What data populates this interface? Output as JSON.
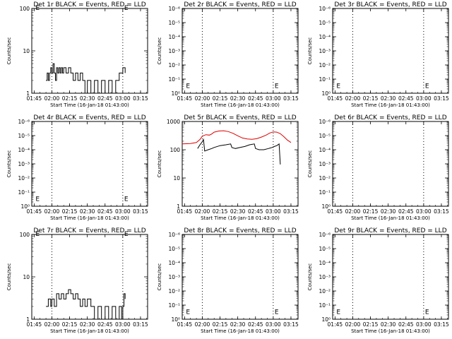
{
  "figure": {
    "background": "#ffffff",
    "event_color": "#000000",
    "lld_color": "#dd0000"
  },
  "chart_data": [
    {
      "type": "line",
      "title": "Det 1r BLACK = Events, RED = LLD",
      "xlabel": "Start Time (16-Jan-18 01:43:00)",
      "ylabel": "Counts/sec",
      "xlim": [
        "01:43",
        "03:21"
      ],
      "y_scale": "log",
      "ylim": [
        1,
        100
      ],
      "xticks": [
        "01:45",
        "02:00",
        "02:15",
        "02:30",
        "02:45",
        "03:00",
        "03:15"
      ],
      "yticks": [
        "1",
        "10",
        "100"
      ],
      "vlines": [
        "02:00",
        "03:00"
      ],
      "markers": [
        {
          "text": "E",
          "x": "01:45",
          "y": 100
        },
        {
          "text": "E",
          "x": "03:00",
          "y": 100
        }
      ],
      "series": [
        {
          "values": [
            [
              "01:55",
              2
            ],
            [
              "01:56",
              3
            ],
            [
              "01:57",
              2
            ],
            [
              "01:58",
              3
            ],
            [
              "01:59",
              4
            ],
            [
              "02:00",
              3
            ],
            [
              "02:01",
              5
            ],
            [
              "02:02",
              3
            ],
            [
              "02:03",
              2
            ],
            [
              "02:04",
              4
            ],
            [
              "02:05",
              3
            ],
            [
              "02:06",
              4
            ],
            [
              "02:07",
              3
            ],
            [
              "02:08",
              4
            ],
            [
              "02:09",
              3
            ],
            [
              "02:10",
              4
            ],
            [
              "02:12",
              3
            ],
            [
              "02:14",
              4
            ],
            [
              "02:16",
              3
            ],
            [
              "02:18",
              2
            ],
            [
              "02:20",
              3
            ],
            [
              "02:22",
              2
            ],
            [
              "02:24",
              3
            ],
            [
              "02:26",
              2
            ],
            [
              "02:28",
              1
            ],
            [
              "02:30",
              2
            ],
            [
              "02:33",
              1
            ],
            [
              "02:36",
              2
            ],
            [
              "02:39",
              1
            ],
            [
              "02:42",
              2
            ],
            [
              "02:45",
              1
            ],
            [
              "02:48",
              2
            ],
            [
              "02:51",
              1
            ],
            [
              "02:54",
              2
            ],
            [
              "02:57",
              3
            ],
            [
              "03:00",
              4
            ],
            [
              "03:02",
              3
            ]
          ]
        }
      ]
    },
    {
      "type": "line",
      "title": "Det 2r BLACK = Events, RED = LLD",
      "xlabel": "Start Time (16-Jan-18 01:43:00)",
      "ylabel": "Counts/sec",
      "xlim": [
        "01:43",
        "03:21"
      ],
      "y_scale": "log",
      "ylim": [
        1,
        1000000
      ],
      "xticks": [
        "01:45",
        "02:00",
        "02:15",
        "02:30",
        "02:45",
        "03:00",
        "03:15"
      ],
      "yticks": [
        "10⁰",
        "10⁻¹",
        "10⁻²",
        "10⁻³",
        "10⁻⁴",
        "10⁻⁵",
        "10⁻⁶"
      ],
      "vlines": [
        "02:00",
        "03:00"
      ],
      "markers": [
        {
          "text": "E",
          "x": "01:45",
          "y": 3
        },
        {
          "text": "E",
          "x": "03:00",
          "y": 3
        }
      ],
      "series": []
    },
    {
      "type": "line",
      "title": "Det 3r BLACK = Events, RED = LLD",
      "xlabel": "Start Time (16-Jan-18 01:43:00)",
      "ylabel": "Counts/sec",
      "xlim": [
        "01:43",
        "03:21"
      ],
      "y_scale": "log",
      "ylim": [
        1,
        1000000
      ],
      "xticks": [
        "01:45",
        "02:00",
        "02:15",
        "02:30",
        "02:45",
        "03:00",
        "03:15"
      ],
      "yticks": [
        "10⁰",
        "10⁻¹",
        "10⁻²",
        "10⁻³",
        "10⁻⁴",
        "10⁻⁵",
        "10⁻⁶"
      ],
      "vlines": [
        "02:00",
        "03:00"
      ],
      "markers": [
        {
          "text": "E",
          "x": "01:45",
          "y": 3
        },
        {
          "text": "E",
          "x": "03:00",
          "y": 3
        }
      ],
      "series": []
    },
    {
      "type": "line",
      "title": "Det 4r BLACK = Events, RED = LLD",
      "xlabel": "Start Time (16-Jan-18 01:43:00)",
      "ylabel": "Counts/sec",
      "xlim": [
        "01:43",
        "03:21"
      ],
      "y_scale": "log",
      "ylim": [
        1,
        1000000
      ],
      "xticks": [
        "01:45",
        "02:00",
        "02:15",
        "02:30",
        "02:45",
        "03:00",
        "03:15"
      ],
      "yticks": [
        "10⁰",
        "10⁻¹",
        "10⁻²",
        "10⁻³",
        "10⁻⁴",
        "10⁻⁵",
        "10⁻⁶"
      ],
      "vlines": [
        "02:00",
        "03:00"
      ],
      "markers": [
        {
          "text": "E",
          "x": "01:45",
          "y": 3
        },
        {
          "text": "E",
          "x": "03:00",
          "y": 3
        }
      ],
      "series": []
    },
    {
      "type": "line",
      "title": "Det 5r BLACK = Events, RED = LLD",
      "xlabel": "Start Time (16-Jan-18 01:43:00)",
      "ylabel": "Counts/sec",
      "xlim": [
        "01:43",
        "03:21"
      ],
      "y_scale": "log",
      "ylim": [
        1,
        1000
      ],
      "xticks": [
        "01:45",
        "02:00",
        "02:15",
        "02:30",
        "02:45",
        "03:00",
        "03:15"
      ],
      "yticks": [
        "1",
        "10",
        "100",
        "1000"
      ],
      "vlines": [
        "02:00",
        "03:00"
      ],
      "markers": [],
      "series": [
        {
          "color": "#dd0000",
          "values": [
            [
              "01:43",
              160
            ],
            [
              "01:50",
              165
            ],
            [
              "01:55",
              180
            ],
            [
              "01:58",
              230
            ],
            [
              "02:00",
              300
            ],
            [
              "02:03",
              340
            ],
            [
              "02:06",
              330
            ],
            [
              "02:08",
              360
            ],
            [
              "02:10",
              420
            ],
            [
              "02:14",
              460
            ],
            [
              "02:18",
              470
            ],
            [
              "02:22",
              440
            ],
            [
              "02:26",
              380
            ],
            [
              "02:30",
              310
            ],
            [
              "02:34",
              260
            ],
            [
              "02:38",
              240
            ],
            [
              "02:42",
              235
            ],
            [
              "02:46",
              245
            ],
            [
              "02:50",
              280
            ],
            [
              "02:54",
              330
            ],
            [
              "02:57",
              390
            ],
            [
              "03:00",
              430
            ],
            [
              "03:03",
              420
            ],
            [
              "03:06",
              370
            ],
            [
              "03:09",
              290
            ],
            [
              "03:12",
              220
            ],
            [
              "03:15",
              180
            ]
          ]
        },
        {
          "color": "#000000",
          "values": [
            [
              "01:56",
              110
            ],
            [
              "01:58",
              150
            ],
            [
              "02:00",
              190
            ],
            [
              "02:01",
              230
            ],
            [
              "02:02",
              90
            ],
            [
              "02:05",
              100
            ],
            [
              "02:08",
              110
            ],
            [
              "02:10",
              120
            ],
            [
              "02:15",
              140
            ],
            [
              "02:20",
              150
            ],
            [
              "02:24",
              160
            ],
            [
              "02:25",
              120
            ],
            [
              "02:28",
              110
            ],
            [
              "02:32",
              120
            ],
            [
              "02:36",
              130
            ],
            [
              "02:40",
              150
            ],
            [
              "02:44",
              160
            ],
            [
              "02:45",
              110
            ],
            [
              "02:48",
              100
            ],
            [
              "02:52",
              100
            ],
            [
              "02:56",
              110
            ],
            [
              "02:59",
              120
            ],
            [
              "03:01",
              130
            ],
            [
              "03:03",
              140
            ],
            [
              "03:05",
              160
            ],
            [
              "03:06",
              30
            ]
          ]
        }
      ]
    },
    {
      "type": "line",
      "title": "Det 6r BLACK = Events, RED = LLD",
      "xlabel": "Start Time (16-Jan-18 01:43:00)",
      "ylabel": "Counts/sec",
      "xlim": [
        "01:43",
        "03:21"
      ],
      "y_scale": "log",
      "ylim": [
        1,
        1000000
      ],
      "xticks": [
        "01:45",
        "02:00",
        "02:15",
        "02:30",
        "02:45",
        "03:00",
        "03:15"
      ],
      "yticks": [
        "10⁰",
        "10⁻¹",
        "10⁻²",
        "10⁻³",
        "10⁻⁴",
        "10⁻⁵",
        "10⁻⁶"
      ],
      "vlines": [
        "02:00",
        "03:00"
      ],
      "markers": [],
      "series": []
    },
    {
      "type": "line",
      "title": "Det 7r BLACK = Events, RED = LLD",
      "xlabel": "Start Time (16-Jan-18 01:43:00)",
      "ylabel": "Counts/sec",
      "xlim": [
        "01:43",
        "03:21"
      ],
      "y_scale": "log",
      "ylim": [
        1,
        100
      ],
      "xticks": [
        "01:45",
        "02:00",
        "02:15",
        "02:30",
        "02:45",
        "03:00",
        "03:15"
      ],
      "yticks": [
        "1",
        "10",
        "100"
      ],
      "vlines": [
        "02:00",
        "03:00"
      ],
      "markers": [
        {
          "text": "E",
          "x": "01:45",
          "y": 100
        },
        {
          "text": "E",
          "x": "03:00",
          "y": 100
        }
      ],
      "series": [
        {
          "values": [
            [
              "01:55",
              2
            ],
            [
              "01:57",
              3
            ],
            [
              "01:59",
              2
            ],
            [
              "02:00",
              3
            ],
            [
              "02:02",
              2
            ],
            [
              "02:04",
              4
            ],
            [
              "02:06",
              3
            ],
            [
              "02:08",
              4
            ],
            [
              "02:10",
              3
            ],
            [
              "02:12",
              4
            ],
            [
              "02:14",
              5
            ],
            [
              "02:16",
              4
            ],
            [
              "02:18",
              3
            ],
            [
              "02:20",
              4
            ],
            [
              "02:22",
              3
            ],
            [
              "02:24",
              2
            ],
            [
              "02:26",
              3
            ],
            [
              "02:28",
              2
            ],
            [
              "02:30",
              3
            ],
            [
              "02:33",
              2
            ],
            [
              "02:36",
              1
            ],
            [
              "02:39",
              2
            ],
            [
              "02:42",
              1
            ],
            [
              "02:45",
              2
            ],
            [
              "02:48",
              1
            ],
            [
              "02:51",
              2
            ],
            [
              "02:54",
              1
            ],
            [
              "02:57",
              2
            ],
            [
              "02:59",
              1
            ],
            [
              "03:00",
              2
            ],
            [
              "03:01",
              4
            ],
            [
              "03:02",
              3
            ]
          ]
        }
      ]
    },
    {
      "type": "line",
      "title": "Det 8r BLACK = Events, RED = LLD",
      "xlabel": "Start Time (16-Jan-18 01:43:00)",
      "ylabel": "Counts/sec",
      "xlim": [
        "01:43",
        "03:21"
      ],
      "y_scale": "log",
      "ylim": [
        1,
        1000000
      ],
      "xticks": [
        "01:45",
        "02:00",
        "02:15",
        "02:30",
        "02:45",
        "03:00",
        "03:15"
      ],
      "yticks": [
        "10⁰",
        "10⁻¹",
        "10⁻²",
        "10⁻³",
        "10⁻⁴",
        "10⁻⁵",
        "10⁻⁶"
      ],
      "vlines": [
        "02:00",
        "03:00"
      ],
      "markers": [
        {
          "text": "E",
          "x": "01:45",
          "y": 3
        },
        {
          "text": "E",
          "x": "03:00",
          "y": 3
        }
      ],
      "series": []
    },
    {
      "type": "line",
      "title": "Det 9r BLACK = Events, RED = LLD",
      "xlabel": "Start Time (16-Jan-18 01:43:00)",
      "ylabel": "Counts/sec",
      "xlim": [
        "01:43",
        "03:21"
      ],
      "y_scale": "log",
      "ylim": [
        1,
        1000000
      ],
      "xticks": [
        "01:45",
        "02:00",
        "02:15",
        "02:30",
        "02:45",
        "03:00",
        "03:15"
      ],
      "yticks": [
        "10⁰",
        "10⁻¹",
        "10⁻²",
        "10⁻³",
        "10⁻⁴",
        "10⁻⁵",
        "10⁻⁶"
      ],
      "vlines": [
        "02:00",
        "03:00"
      ],
      "markers": [
        {
          "text": "E",
          "x": "01:45",
          "y": 3
        },
        {
          "text": "E",
          "x": "03:00",
          "y": 3
        }
      ],
      "series": []
    }
  ]
}
